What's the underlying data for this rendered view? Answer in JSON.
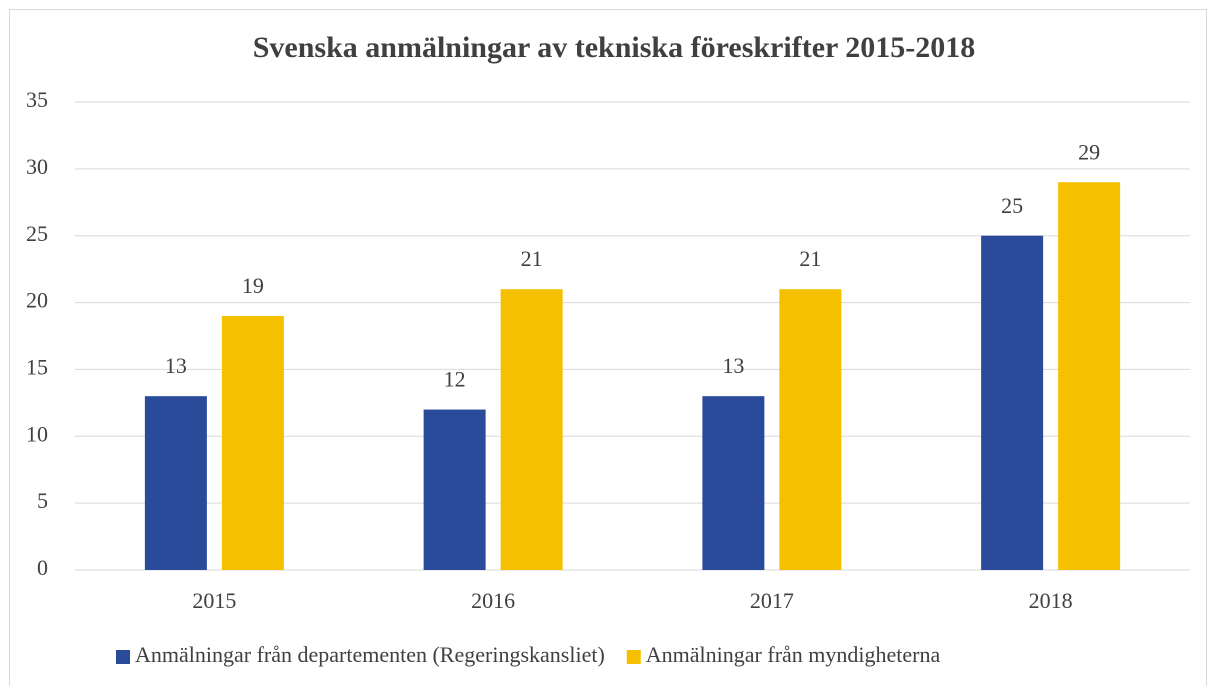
{
  "chart_data": {
    "type": "bar",
    "title": "Svenska anmälningar av tekniska föreskrifter 2015-2018",
    "categories": [
      "2015",
      "2016",
      "2017",
      "2018"
    ],
    "series": [
      {
        "name": "Anmälningar från departementen (Regeringskansliet)",
        "color": "#2a4a9a",
        "values": [
          13,
          12,
          13,
          25
        ]
      },
      {
        "name": "Anmälningar från myndigheterna",
        "color": "#f5c000",
        "values": [
          19,
          21,
          21,
          29
        ]
      }
    ],
    "ylim": [
      0,
      35
    ],
    "yticks": [
      0,
      5,
      10,
      15,
      20,
      25,
      30,
      35
    ],
    "grid": true,
    "legend": "bottom"
  }
}
